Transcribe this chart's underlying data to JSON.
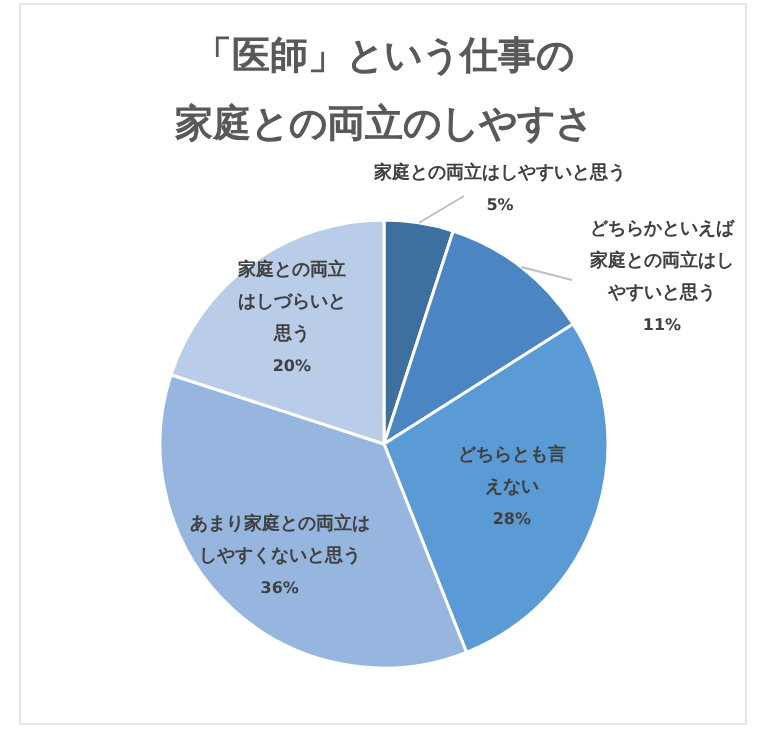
{
  "chart_data": {
    "type": "pie",
    "title": "「医師」という仕事の家庭との両立のしやすさ",
    "categories": [
      "家庭との両立はしやすいと思う",
      "どちらかといえば家庭との両立はしやすいと思う",
      "どちらとも言えない",
      "あまり家庭との両立はしやすくないと思う",
      "家庭との両立はしづらいと思う"
    ],
    "values": [
      5,
      11,
      28,
      36,
      20
    ],
    "colors": [
      "#3d6f9f",
      "#4c86c2",
      "#5b9bd5",
      "#97b6df",
      "#b9cce8"
    ],
    "value_labels": [
      "5%",
      "11%",
      "28%",
      "36%",
      "20%"
    ]
  }
}
